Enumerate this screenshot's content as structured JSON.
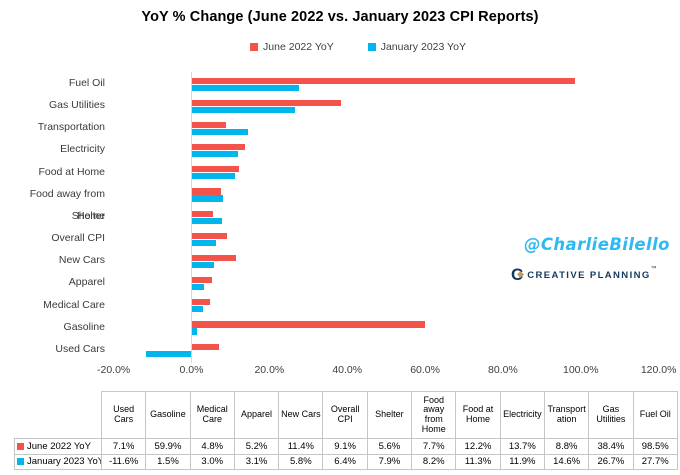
{
  "title": "YoY % Change (June 2022 vs. January 2023 CPI Reports)",
  "legend": {
    "items": [
      {
        "label": "June 2022 YoY",
        "color": "#F4534B"
      },
      {
        "label": "January 2023 YoY",
        "color": "#00B6EC"
      }
    ]
  },
  "chart_data": {
    "type": "bar",
    "orientation": "horizontal",
    "title": "YoY % Change (June 2022 vs. January 2023 CPI Reports)",
    "categories": [
      "Fuel Oil",
      "Gas Utilities",
      "Transportation",
      "Electricity",
      "Food at Home",
      "Food away from Home",
      "Shelter",
      "Overall CPI",
      "New Cars",
      "Apparel",
      "Medical Care",
      "Gasoline",
      "Used Cars"
    ],
    "series": [
      {
        "name": "June 2022 YoY",
        "color": "#F4534B",
        "values": [
          98.5,
          38.4,
          8.8,
          13.7,
          12.2,
          7.7,
          5.6,
          9.1,
          11.4,
          5.2,
          4.8,
          59.9,
          7.1
        ]
      },
      {
        "name": "January 2023 YoY",
        "color": "#00B6EC",
        "values": [
          27.7,
          26.7,
          14.6,
          11.9,
          11.3,
          8.2,
          7.9,
          6.4,
          5.8,
          3.1,
          3.0,
          1.5,
          -11.6
        ]
      }
    ],
    "xlim": [
      -20,
      120
    ],
    "x_ticks": [
      {
        "value": -20,
        "label": "-20.0%"
      },
      {
        "value": 0,
        "label": "0.0%"
      },
      {
        "value": 20,
        "label": "20.0%"
      },
      {
        "value": 40,
        "label": "40.0%"
      },
      {
        "value": 60,
        "label": "60.0%"
      },
      {
        "value": 80,
        "label": "80.0%"
      },
      {
        "value": 100,
        "label": "100.0%"
      },
      {
        "value": 120,
        "label": "120.0%"
      }
    ],
    "grid": false,
    "legend_position": "top",
    "axis_color": "#D6D6D6"
  },
  "table": {
    "columns": [
      "Used Cars",
      "Gasoline",
      "Medical Care",
      "Apparel",
      "New Cars",
      "Overall CPI",
      "Shelter",
      "Food away from Home",
      "Food at Home",
      "Electricity",
      "Transportation",
      "Gas Utilities",
      "Fuel Oil"
    ],
    "row_headers": [
      "June 2022 YoY",
      "January 2023 YoY"
    ],
    "rows": [
      [
        "7.1%",
        "59.9%",
        "4.8%",
        "5.2%",
        "11.4%",
        "9.1%",
        "5.6%",
        "7.7%",
        "12.2%",
        "13.7%",
        "8.8%",
        "38.4%",
        "98.5%"
      ],
      [
        "-11.6%",
        "1.5%",
        "3.0%",
        "3.1%",
        "5.8%",
        "6.4%",
        "7.9%",
        "8.2%",
        "11.3%",
        "11.9%",
        "14.6%",
        "26.7%",
        "27.7%"
      ]
    ],
    "border_color": "#C6C6C6"
  },
  "watermarks": {
    "twitter_handle": "@CharlieBilello",
    "handle_color": "#2EB9F1",
    "brand": "CREATIVE PLANNING",
    "brand_mark": "™",
    "brand_color": "#16385E",
    "brand_gold": "#BC9B5D"
  }
}
